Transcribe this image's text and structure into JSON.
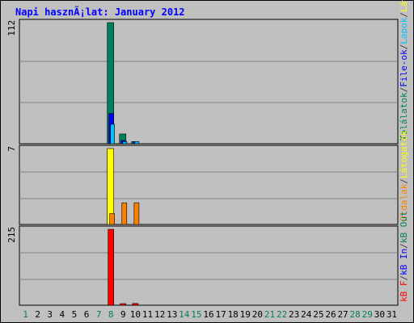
{
  "chart_data": {
    "type": "bar",
    "title": "Napi hasznÃ¡lat: January 2012",
    "categories": [
      "1",
      "2",
      "3",
      "4",
      "5",
      "6",
      "7",
      "8",
      "9",
      "10",
      "11",
      "12",
      "13",
      "14",
      "15",
      "16",
      "17",
      "18",
      "19",
      "20",
      "21",
      "22",
      "23",
      "24",
      "25",
      "26",
      "27",
      "28",
      "29",
      "30",
      "31"
    ],
    "weekend_days": [
      "1",
      "7",
      "8",
      "14",
      "15",
      "21",
      "22",
      "28",
      "29"
    ],
    "grid": true,
    "panels": [
      {
        "ymax": 112,
        "ymax_label": "112",
        "series": [
          {
            "name": "Találatok",
            "color": "#007f5f",
            "values": [
              0,
              0,
              0,
              0,
              0,
              0,
              0,
              112,
              9,
              2,
              0,
              0,
              0,
              0,
              0,
              0,
              0,
              0,
              0,
              0,
              0,
              0,
              0,
              0,
              0,
              0,
              0,
              0,
              0,
              0,
              0
            ]
          },
          {
            "name": "File-ok",
            "color": "#0000ff",
            "values": [
              0,
              0,
              0,
              0,
              0,
              0,
              0,
              28,
              3,
              2,
              0,
              0,
              0,
              0,
              0,
              0,
              0,
              0,
              0,
              0,
              0,
              0,
              0,
              0,
              0,
              0,
              0,
              0,
              0,
              0,
              0
            ]
          },
          {
            "name": "Lapok",
            "color": "#00c0ff",
            "values": [
              0,
              0,
              0,
              0,
              0,
              0,
              0,
              18,
              2,
              2,
              0,
              0,
              0,
              0,
              0,
              0,
              0,
              0,
              0,
              0,
              0,
              0,
              0,
              0,
              0,
              0,
              0,
              0,
              0,
              0,
              0
            ]
          }
        ],
        "legend": [
          {
            "label": "Találatok",
            "color": "#007f5f"
          },
          {
            "label": "/",
            "color": "#404040"
          },
          {
            "label": "File-ok",
            "color": "#0000ff"
          },
          {
            "label": "/",
            "color": "#404040"
          },
          {
            "label": "Lapok",
            "color": "#00c0ff"
          },
          {
            "label": "/",
            "color": "#404040"
          },
          {
            "label": "Látogatók",
            "color": "#ffff00"
          }
        ]
      },
      {
        "ymax": 7,
        "ymax_label": "7",
        "series": [
          {
            "name": "Látogatók",
            "color": "#ffff00",
            "values": [
              0,
              0,
              0,
              0,
              0,
              0,
              0,
              7,
              0,
              0,
              0,
              0,
              0,
              0,
              0,
              0,
              0,
              0,
              0,
              0,
              0,
              0,
              0,
              0,
              0,
              0,
              0,
              0,
              0,
              0,
              0
            ]
          },
          {
            "name": "Oldalak",
            "color": "#ff8000",
            "values": [
              0,
              0,
              0,
              0,
              0,
              0,
              0,
              1,
              2,
              2,
              0,
              0,
              0,
              0,
              0,
              0,
              0,
              0,
              0,
              0,
              0,
              0,
              0,
              0,
              0,
              0,
              0,
              0,
              0,
              0,
              0
            ]
          }
        ],
        "legend": [
          {
            "label": "Oldalak",
            "color": "#ff8000"
          },
          {
            "label": "/",
            "color": "#404040"
          },
          {
            "label": "Látogatók",
            "color": "#ffff00"
          }
        ]
      },
      {
        "ymax": 215,
        "ymax_label": "215",
        "series": [
          {
            "name": "kB F",
            "color": "#ff0000",
            "values": [
              0,
              0,
              0,
              0,
              0,
              0,
              0,
              215,
              4,
              5,
              0,
              0,
              0,
              0,
              0,
              0,
              0,
              0,
              0,
              0,
              0,
              0,
              0,
              0,
              0,
              0,
              0,
              0,
              0,
              0,
              0
            ]
          }
        ],
        "legend": [
          {
            "label": "kB F",
            "color": "#ff0000"
          },
          {
            "label": "/",
            "color": "#404040"
          },
          {
            "label": "kB In",
            "color": "#0000ff"
          },
          {
            "label": "/",
            "color": "#404040"
          },
          {
            "label": "kB Out",
            "color": "#007f5f"
          }
        ]
      }
    ]
  },
  "colors": {
    "background": "#c0c0c0",
    "plot_background": "#c0c0c0",
    "title": "#0000ff",
    "weekday_label": "#000000",
    "weekend_label": "#007f5f"
  }
}
